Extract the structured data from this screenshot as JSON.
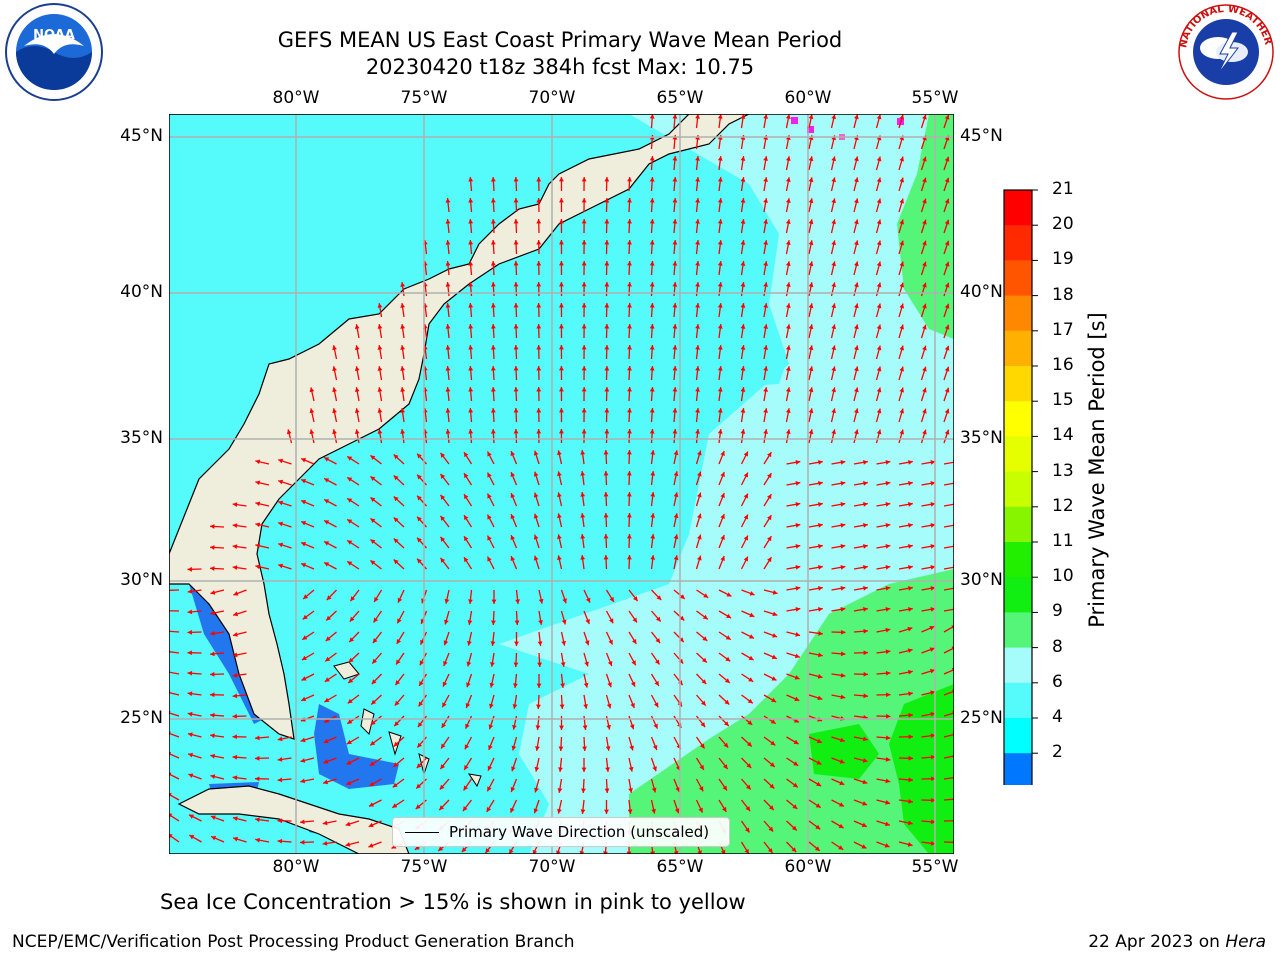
{
  "title": {
    "line1": "GEFS MEAN US East Coast Primary Wave Mean Period",
    "line2": "20230420 t18z 384h fcst   Max: 10.75"
  },
  "map": {
    "lon_labels": [
      "80°W",
      "75°W",
      "70°W",
      "65°W",
      "60°W",
      "55°W"
    ],
    "lat_labels": [
      "45°N",
      "40°N",
      "35°N",
      "30°N",
      "25°N"
    ],
    "colors": {
      "land": "#efeedc",
      "sea_cyan": "#55fafa",
      "sea_light": "#a6fbfb",
      "sea_green": "#55f57a",
      "sea_bright_green": "#11ee11",
      "sea_blue": "#2277ee",
      "arrow": "#ff0000",
      "grid": "#b0b0b0"
    },
    "legend_label": "Primary Wave Direction (unscaled)"
  },
  "colorbar": {
    "title": "Primary Wave Mean Period [s]",
    "ticks": [
      "21",
      "20",
      "19",
      "18",
      "17",
      "16",
      "15",
      "14",
      "13",
      "12",
      "11",
      "10",
      "9",
      "8",
      "6",
      "4",
      "2"
    ],
    "colors": [
      "#ff0000",
      "#ff2a00",
      "#ff5500",
      "#ff8800",
      "#ffb000",
      "#ffd800",
      "#ffff00",
      "#e6ff00",
      "#c8ff00",
      "#88f500",
      "#22ee00",
      "#11ee11",
      "#55f57a",
      "#a6fbfb",
      "#55fafa",
      "#00ffff",
      "#0077ff"
    ],
    "extend_color": "#0000ee"
  },
  "note": "Sea Ice Concentration > 15% is shown in pink to yellow",
  "footer": {
    "left": "NCEP/EMC/Verification Post Processing Product Generation Branch",
    "right_date": "22 Apr 2023 on ",
    "right_host": "Hera"
  },
  "logos": {
    "noaa_text": "NOAA",
    "nws_text": "NATIONAL WEATHER SERVICE"
  }
}
